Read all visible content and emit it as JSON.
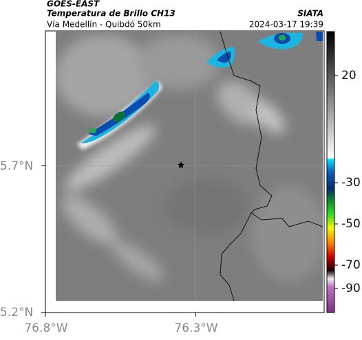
{
  "header": {
    "source": "GOES-EAST",
    "title": "Temperatura de Brillo CH13",
    "credit": "SIATA",
    "route": "Vía Medellín - Quibdó 50km",
    "timestamp": "2024-03-17 19:39"
  },
  "axes": {
    "lat_labels": [
      "5.7°N",
      "5.2°N"
    ],
    "lon_labels": [
      "76.8°W",
      "76.3°W"
    ]
  },
  "colorbar": {
    "ticks": [
      "20",
      "-30",
      "-50",
      "-70",
      "-90"
    ]
  }
}
